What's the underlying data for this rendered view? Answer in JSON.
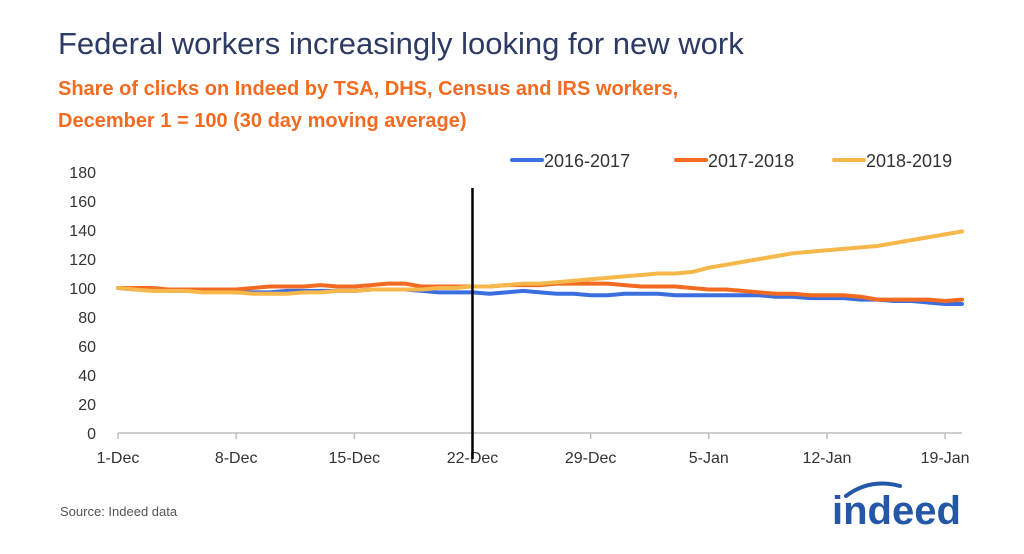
{
  "title": "Federal workers increasingly looking for new work",
  "subtitle_line1": "Share of clicks on Indeed by TSA, DHS, Census and IRS workers,",
  "subtitle_line2": "December 1 = 100 (30 day moving average)",
  "source": "Source: Indeed data",
  "logo_text": "indeed",
  "colors": {
    "title": "#2d3a63",
    "subtitle": "#f26b21",
    "series": [
      "#3b6fe0",
      "#f26b21",
      "#f7b84b"
    ],
    "marker_line": "#000000",
    "logo": "#2557a7"
  },
  "chart_data": {
    "type": "line",
    "title": "Federal workers increasingly looking for new work",
    "ylim": [
      0,
      180
    ],
    "yticks": [
      0,
      20,
      40,
      60,
      80,
      100,
      120,
      140,
      160,
      180
    ],
    "xlim": [
      0,
      50
    ],
    "xticks": [
      {
        "x": 0,
        "label": "1-Dec"
      },
      {
        "x": 7,
        "label": "8-Dec"
      },
      {
        "x": 14,
        "label": "15-Dec"
      },
      {
        "x": 21,
        "label": "22-Dec"
      },
      {
        "x": 28,
        "label": "29-Dec"
      },
      {
        "x": 35,
        "label": "5-Jan"
      },
      {
        "x": 42,
        "label": "12-Jan"
      },
      {
        "x": 49,
        "label": "19-Jan"
      }
    ],
    "vertical_marker": 21,
    "grid": false,
    "legend_position": "top-right",
    "series": [
      {
        "name": "2016-2017",
        "values": [
          100,
          99,
          99,
          98,
          98,
          98,
          98,
          97,
          97,
          97,
          98,
          98,
          98,
          98,
          98,
          99,
          99,
          99,
          98,
          97,
          97,
          97,
          96,
          97,
          98,
          97,
          96,
          96,
          95,
          95,
          96,
          96,
          96,
          95,
          95,
          95,
          95,
          95,
          95,
          94,
          94,
          93,
          93,
          93,
          92,
          92,
          91,
          91,
          90,
          89,
          89
        ]
      },
      {
        "name": "2017-2018",
        "values": [
          100,
          100,
          100,
          99,
          99,
          99,
          99,
          99,
          100,
          101,
          101,
          101,
          102,
          101,
          101,
          102,
          103,
          103,
          101,
          101,
          101,
          101,
          101,
          102,
          102,
          102,
          103,
          103,
          103,
          103,
          102,
          101,
          101,
          101,
          100,
          99,
          99,
          98,
          97,
          96,
          96,
          95,
          95,
          95,
          94,
          92,
          92,
          92,
          92,
          91,
          92
        ]
      },
      {
        "name": "2018-2019",
        "values": [
          100,
          99,
          98,
          98,
          98,
          97,
          97,
          97,
          96,
          96,
          96,
          97,
          97,
          98,
          98,
          99,
          99,
          99,
          99,
          100,
          100,
          101,
          101,
          102,
          103,
          103,
          104,
          105,
          106,
          107,
          108,
          109,
          110,
          110,
          111,
          114,
          116,
          118,
          120,
          122,
          124,
          125,
          126,
          127,
          128,
          129,
          131,
          133,
          135,
          137,
          139
        ]
      }
    ]
  }
}
